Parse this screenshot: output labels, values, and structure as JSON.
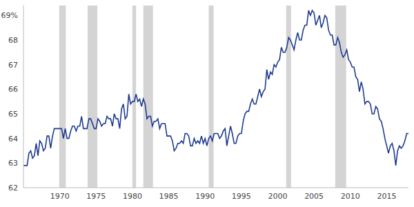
{
  "chart_data": {
    "type": "line",
    "x": [
      1965,
      1965.25,
      1965.5,
      1965.75,
      1966,
      1966.25,
      1966.5,
      1966.75,
      1967,
      1967.25,
      1967.5,
      1967.75,
      1968,
      1968.25,
      1968.5,
      1968.75,
      1969,
      1969.25,
      1969.5,
      1969.75,
      1970,
      1970.25,
      1970.5,
      1970.75,
      1971,
      1971.25,
      1971.5,
      1971.75,
      1972,
      1972.25,
      1972.5,
      1972.75,
      1973,
      1973.25,
      1973.5,
      1973.75,
      1974,
      1974.25,
      1974.5,
      1974.75,
      1975,
      1975.25,
      1975.5,
      1975.75,
      1976,
      1976.25,
      1976.5,
      1976.75,
      1977,
      1977.25,
      1977.5,
      1977.75,
      1978,
      1978.25,
      1978.5,
      1978.75,
      1979,
      1979.25,
      1979.5,
      1979.75,
      1980,
      1980.25,
      1980.5,
      1980.75,
      1981,
      1981.25,
      1981.5,
      1981.75,
      1982,
      1982.25,
      1982.5,
      1982.75,
      1983,
      1983.25,
      1983.5,
      1983.75,
      1984,
      1984.25,
      1984.5,
      1984.75,
      1985,
      1985.25,
      1985.5,
      1985.75,
      1986,
      1986.25,
      1986.5,
      1986.75,
      1987,
      1987.25,
      1987.5,
      1987.75,
      1988,
      1988.25,
      1988.5,
      1988.75,
      1989,
      1989.25,
      1989.5,
      1989.75,
      1990,
      1990.25,
      1990.5,
      1990.75,
      1991,
      1991.25,
      1991.5,
      1991.75,
      1992,
      1992.25,
      1992.5,
      1992.75,
      1993,
      1993.25,
      1993.5,
      1993.75,
      1994,
      1994.25,
      1994.5,
      1994.75,
      1995,
      1995.25,
      1995.5,
      1995.75,
      1996,
      1996.25,
      1996.5,
      1996.75,
      1997,
      1997.25,
      1997.5,
      1997.75,
      1998,
      1998.25,
      1998.5,
      1998.75,
      1999,
      1999.25,
      1999.5,
      1999.75,
      2000,
      2000.25,
      2000.5,
      2000.75,
      2001,
      2001.25,
      2001.5,
      2001.75,
      2002,
      2002.25,
      2002.5,
      2002.75,
      2003,
      2003.25,
      2003.5,
      2003.75,
      2004,
      2004.25,
      2004.5,
      2004.75,
      2005,
      2005.25,
      2005.5,
      2005.75,
      2006,
      2006.25,
      2006.5,
      2006.75,
      2007,
      2007.25,
      2007.5,
      2007.75,
      2008,
      2008.25,
      2008.5,
      2008.75,
      2009,
      2009.25,
      2009.5,
      2009.75,
      2010,
      2010.25,
      2010.5,
      2010.75,
      2011,
      2011.25,
      2011.5,
      2011.75,
      2012,
      2012.25,
      2012.5,
      2012.75,
      2013,
      2013.25,
      2013.5,
      2013.75,
      2014,
      2014.25,
      2014.5,
      2014.75,
      2015,
      2015.25,
      2015.5,
      2015.75,
      2016,
      2016.25,
      2016.5,
      2016.75,
      2017,
      2017.25,
      2017.5,
      2017.75,
      2018
    ],
    "values": [
      62.9,
      62.9,
      62.9,
      63.4,
      63.5,
      63.2,
      63.3,
      63.8,
      63.3,
      63.9,
      63.8,
      63.5,
      63.6,
      64.1,
      64.1,
      63.6,
      64.1,
      64.4,
      64.4,
      64.4,
      64.4,
      64.4,
      64.0,
      64.4,
      64.0,
      64.0,
      64.3,
      64.5,
      64.5,
      64.3,
      64.5,
      64.5,
      64.9,
      64.4,
      64.4,
      64.4,
      64.8,
      64.8,
      64.6,
      64.4,
      64.4,
      64.8,
      64.7,
      64.5,
      64.6,
      64.6,
      64.9,
      64.8,
      64.8,
      64.5,
      65.0,
      64.8,
      64.8,
      64.4,
      65.2,
      65.4,
      64.8,
      64.9,
      65.8,
      65.4,
      65.5,
      65.5,
      65.8,
      65.5,
      65.6,
      65.3,
      65.6,
      65.4,
      64.8,
      64.9,
      64.9,
      64.5,
      64.7,
      64.7,
      64.8,
      64.4,
      64.6,
      64.6,
      64.6,
      64.1,
      64.1,
      64.1,
      63.9,
      63.5,
      63.6,
      63.8,
      63.8,
      63.9,
      63.8,
      64.2,
      64.2,
      64.1,
      63.7,
      63.7,
      64.0,
      63.8,
      63.9,
      63.8,
      64.1,
      63.8,
      64.0,
      63.7,
      64.0,
      64.1,
      63.9,
      64.2,
      64.2,
      64.2,
      64.0,
      64.1,
      64.3,
      64.4,
      63.7,
      64.1,
      64.5,
      64.2,
      63.8,
      63.8,
      64.1,
      64.2,
      64.2,
      64.7,
      65.0,
      65.1,
      65.1,
      65.4,
      65.6,
      65.4,
      65.4,
      65.7,
      66.0,
      65.7,
      65.9,
      66.0,
      66.8,
      66.4,
      66.7,
      66.6,
      67.0,
      66.9,
      67.1,
      67.2,
      67.7,
      67.5,
      67.5,
      67.7,
      68.1,
      68.0,
      67.8,
      67.6,
      68.0,
      68.3,
      68.0,
      68.0,
      68.4,
      68.6,
      68.6,
      69.2,
      69.0,
      69.2,
      69.1,
      68.6,
      68.8,
      69.0,
      68.5,
      68.7,
      69.0,
      68.9,
      68.4,
      68.2,
      68.2,
      67.8,
      67.8,
      68.1,
      67.9,
      67.5,
      67.3,
      67.4,
      67.6,
      67.2,
      67.1,
      66.9,
      66.9,
      66.5,
      66.4,
      65.9,
      66.3,
      66.0,
      65.4,
      65.5,
      65.5,
      65.4,
      65.0,
      65.0,
      65.3,
      65.2,
      64.8,
      64.7,
      64.4,
      64.0,
      63.7,
      63.4,
      63.7,
      63.8,
      63.5,
      62.9,
      63.5,
      63.7,
      63.6,
      63.7,
      63.9,
      64.2,
      64.2
    ],
    "color": "#1d3a8f",
    "recessions": [
      [
        1969.92,
        1970.83
      ],
      [
        1973.83,
        1975.17
      ],
      [
        1980.0,
        1980.5
      ],
      [
        1981.5,
        1982.83
      ],
      [
        1990.5,
        1991.17
      ],
      [
        2001.17,
        2001.83
      ],
      [
        2007.92,
        2009.42
      ]
    ],
    "xlim": [
      1965,
      2018
    ],
    "xticks": [
      1970,
      1975,
      1980,
      1985,
      1990,
      1995,
      2000,
      2005,
      2010,
      2015
    ],
    "ylim": [
      62,
      69.4
    ],
    "yticks": [
      62,
      63,
      64,
      65,
      66,
      67,
      68,
      {
        "value": 69,
        "label": "69%"
      }
    ],
    "grid": false
  }
}
